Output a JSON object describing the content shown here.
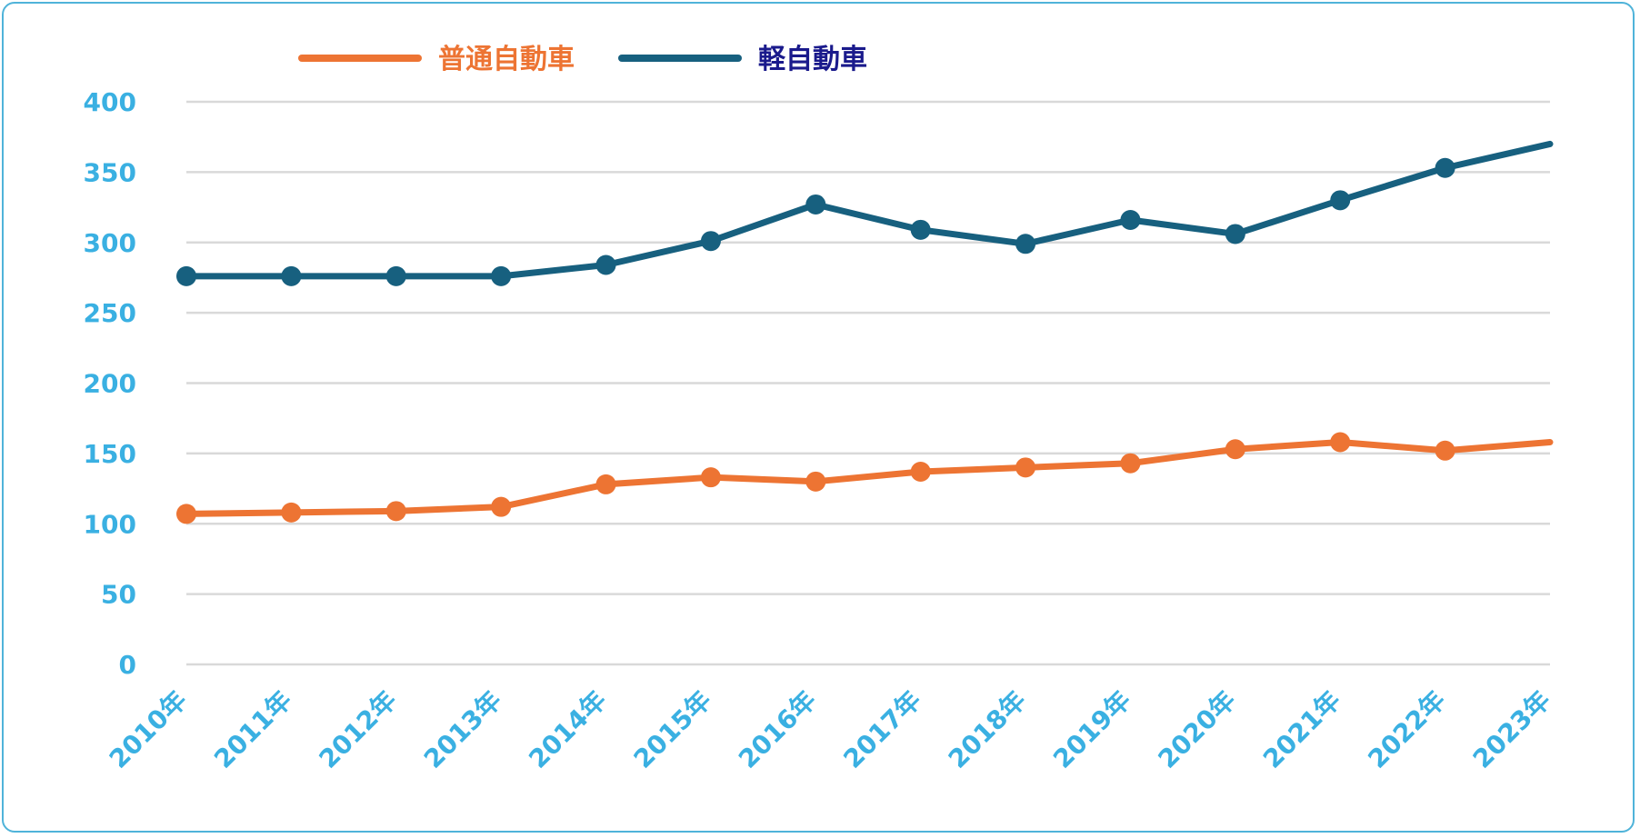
{
  "chart_data": {
    "type": "line",
    "title": "",
    "xlabel": "",
    "ylabel": "",
    "categories": [
      "2010年",
      "2011年",
      "2012年",
      "2013年",
      "2014年",
      "2015年",
      "2016年",
      "2017年",
      "2018年",
      "2019年",
      "2020年",
      "2021年",
      "2022年",
      "2023年"
    ],
    "ylim": [
      0,
      400
    ],
    "yticks": [
      0,
      50,
      100,
      150,
      200,
      250,
      300,
      350,
      400
    ],
    "grid": true,
    "legend_position": "top",
    "series": [
      {
        "name": "普通自動車",
        "color": "#ed7433",
        "label_color": "#ed7433",
        "values": [
          107,
          108,
          109,
          112,
          128,
          133,
          130,
          137,
          140,
          143,
          153,
          158,
          152,
          158
        ]
      },
      {
        "name": "軽自動車",
        "color": "#17607f",
        "label_color": "#1a1a8c",
        "values": [
          276,
          276,
          276,
          276,
          284,
          301,
          327,
          309,
          299,
          316,
          306,
          330,
          353,
          370
        ]
      }
    ]
  }
}
